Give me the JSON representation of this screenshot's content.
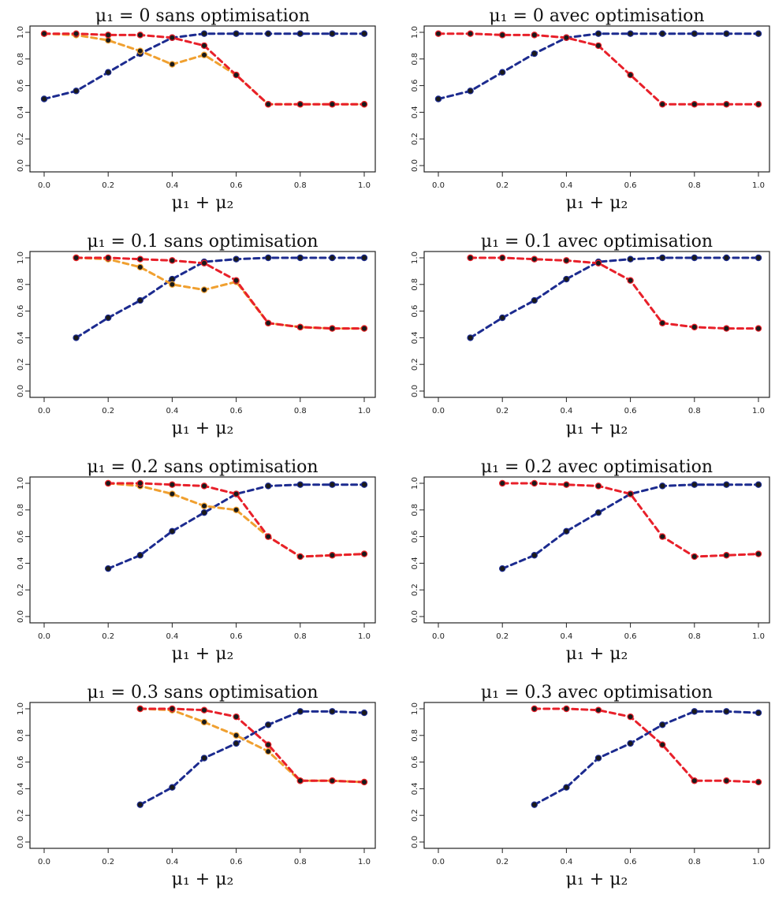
{
  "chart_data": [
    {
      "type": "line",
      "title": "μ₁ = 0 sans optimisation",
      "xlabel": "μ₁ + μ₂",
      "xlim": [
        0,
        1
      ],
      "ylim": [
        0,
        1
      ],
      "xticks": [
        "0.0",
        "0.2",
        "0.4",
        "0.6",
        "0.8",
        "1.0"
      ],
      "yticks": [
        "0.0",
        "0.2",
        "0.4",
        "0.6",
        "0.8",
        "1.0"
      ],
      "series": [
        {
          "color": "#1c2b8f",
          "x": [
            0,
            0.1,
            0.2,
            0.3,
            0.4,
            0.5,
            0.6,
            0.7,
            0.8,
            0.9,
            1.0
          ],
          "y": [
            0.5,
            0.56,
            0.7,
            0.84,
            0.96,
            0.99,
            0.99,
            0.99,
            0.99,
            0.99,
            0.99
          ]
        },
        {
          "color": "#f0a030",
          "x": [
            0,
            0.1,
            0.2,
            0.3,
            0.4,
            0.5,
            0.6,
            0.7,
            0.8,
            0.9,
            1.0
          ],
          "y": [
            0.99,
            0.98,
            0.94,
            0.86,
            0.76,
            0.83,
            0.68,
            0.46,
            0.46,
            0.46,
            0.46
          ]
        },
        {
          "color": "#e8202a",
          "x": [
            0,
            0.1,
            0.2,
            0.3,
            0.4,
            0.5,
            0.6,
            0.7,
            0.8,
            0.9,
            1.0
          ],
          "y": [
            0.99,
            0.99,
            0.98,
            0.98,
            0.96,
            0.9,
            0.68,
            0.46,
            0.46,
            0.46,
            0.46
          ]
        }
      ]
    },
    {
      "type": "line",
      "title": "μ₁ = 0 avec optimisation",
      "xlabel": "μ₁ + μ₂",
      "xlim": [
        0,
        1
      ],
      "ylim": [
        0,
        1
      ],
      "xticks": [
        "0.0",
        "0.2",
        "0.4",
        "0.6",
        "0.8",
        "1.0"
      ],
      "yticks": [
        "0.0",
        "0.2",
        "0.4",
        "0.6",
        "0.8",
        "1.0"
      ],
      "series": [
        {
          "color": "#1c2b8f",
          "x": [
            0,
            0.1,
            0.2,
            0.3,
            0.4,
            0.5,
            0.6,
            0.7,
            0.8,
            0.9,
            1.0
          ],
          "y": [
            0.5,
            0.56,
            0.7,
            0.84,
            0.96,
            0.99,
            0.99,
            0.99,
            0.99,
            0.99,
            0.99
          ]
        },
        {
          "color": "#e8202a",
          "x": [
            0,
            0.1,
            0.2,
            0.3,
            0.4,
            0.5,
            0.6,
            0.7,
            0.8,
            0.9,
            1.0
          ],
          "y": [
            0.99,
            0.99,
            0.98,
            0.98,
            0.96,
            0.9,
            0.68,
            0.46,
            0.46,
            0.46,
            0.46
          ]
        }
      ]
    },
    {
      "type": "line",
      "title": "μ₁ = 0.1 sans optimisation",
      "xlabel": "μ₁ + μ₂",
      "xlim": [
        0,
        1
      ],
      "ylim": [
        0,
        1
      ],
      "xticks": [
        "0.0",
        "0.2",
        "0.4",
        "0.6",
        "0.8",
        "1.0"
      ],
      "yticks": [
        "0.0",
        "0.2",
        "0.4",
        "0.6",
        "0.8",
        "1.0"
      ],
      "series": [
        {
          "color": "#1c2b8f",
          "x": [
            0.1,
            0.2,
            0.3,
            0.4,
            0.5,
            0.6,
            0.7,
            0.8,
            0.9,
            1.0
          ],
          "y": [
            0.4,
            0.55,
            0.68,
            0.84,
            0.97,
            0.99,
            1.0,
            1.0,
            1.0,
            1.0
          ]
        },
        {
          "color": "#f0a030",
          "x": [
            0.1,
            0.2,
            0.3,
            0.4,
            0.5,
            0.6,
            0.7,
            0.8,
            0.9,
            1.0
          ],
          "y": [
            1.0,
            0.99,
            0.93,
            0.8,
            0.76,
            0.82,
            0.51,
            0.48,
            0.47,
            0.47
          ]
        },
        {
          "color": "#e8202a",
          "x": [
            0.1,
            0.2,
            0.3,
            0.4,
            0.5,
            0.6,
            0.7,
            0.8,
            0.9,
            1.0
          ],
          "y": [
            1.0,
            1.0,
            0.99,
            0.98,
            0.96,
            0.83,
            0.51,
            0.48,
            0.47,
            0.47
          ]
        }
      ]
    },
    {
      "type": "line",
      "title": "μ₁ = 0.1 avec optimisation",
      "xlabel": "μ₁ + μ₂",
      "xlim": [
        0,
        1
      ],
      "ylim": [
        0,
        1
      ],
      "xticks": [
        "0.0",
        "0.2",
        "0.4",
        "0.6",
        "0.8",
        "1.0"
      ],
      "yticks": [
        "0.0",
        "0.2",
        "0.4",
        "0.6",
        "0.8",
        "1.0"
      ],
      "series": [
        {
          "color": "#1c2b8f",
          "x": [
            0.1,
            0.2,
            0.3,
            0.4,
            0.5,
            0.6,
            0.7,
            0.8,
            0.9,
            1.0
          ],
          "y": [
            0.4,
            0.55,
            0.68,
            0.84,
            0.97,
            0.99,
            1.0,
            1.0,
            1.0,
            1.0
          ]
        },
        {
          "color": "#e8202a",
          "x": [
            0.1,
            0.2,
            0.3,
            0.4,
            0.5,
            0.6,
            0.7,
            0.8,
            0.9,
            1.0
          ],
          "y": [
            1.0,
            1.0,
            0.99,
            0.98,
            0.96,
            0.83,
            0.51,
            0.48,
            0.47,
            0.47
          ]
        }
      ]
    },
    {
      "type": "line",
      "title": "μ₁ = 0.2 sans optimisation",
      "xlabel": "μ₁ + μ₂",
      "xlim": [
        0,
        1
      ],
      "ylim": [
        0,
        1
      ],
      "xticks": [
        "0.0",
        "0.2",
        "0.4",
        "0.6",
        "0.8",
        "1.0"
      ],
      "yticks": [
        "0.0",
        "0.2",
        "0.4",
        "0.6",
        "0.8",
        "1.0"
      ],
      "series": [
        {
          "color": "#1c2b8f",
          "x": [
            0.2,
            0.3,
            0.4,
            0.5,
            0.6,
            0.7,
            0.8,
            0.9,
            1.0
          ],
          "y": [
            0.36,
            0.46,
            0.64,
            0.78,
            0.92,
            0.98,
            0.99,
            0.99,
            0.99
          ]
        },
        {
          "color": "#f0a030",
          "x": [
            0.2,
            0.3,
            0.4,
            0.5,
            0.6,
            0.7,
            0.8,
            0.9,
            1.0
          ],
          "y": [
            1.0,
            0.98,
            0.92,
            0.83,
            0.8,
            0.6,
            0.45,
            0.46,
            0.47
          ]
        },
        {
          "color": "#e8202a",
          "x": [
            0.2,
            0.3,
            0.4,
            0.5,
            0.6,
            0.7,
            0.8,
            0.9,
            1.0
          ],
          "y": [
            1.0,
            1.0,
            0.99,
            0.98,
            0.92,
            0.6,
            0.45,
            0.46,
            0.47
          ]
        }
      ]
    },
    {
      "type": "line",
      "title": "μ₁ = 0.2 avec optimisation",
      "xlabel": "μ₁ + μ₂",
      "xlim": [
        0,
        1
      ],
      "ylim": [
        0,
        1
      ],
      "xticks": [
        "0.0",
        "0.2",
        "0.4",
        "0.6",
        "0.8",
        "1.0"
      ],
      "yticks": [
        "0.0",
        "0.2",
        "0.4",
        "0.6",
        "0.8",
        "1.0"
      ],
      "series": [
        {
          "color": "#1c2b8f",
          "x": [
            0.2,
            0.3,
            0.4,
            0.5,
            0.6,
            0.7,
            0.8,
            0.9,
            1.0
          ],
          "y": [
            0.36,
            0.46,
            0.64,
            0.78,
            0.92,
            0.98,
            0.99,
            0.99,
            0.99
          ]
        },
        {
          "color": "#e8202a",
          "x": [
            0.2,
            0.3,
            0.4,
            0.5,
            0.6,
            0.7,
            0.8,
            0.9,
            1.0
          ],
          "y": [
            1.0,
            1.0,
            0.99,
            0.98,
            0.92,
            0.6,
            0.45,
            0.46,
            0.47
          ]
        }
      ]
    },
    {
      "type": "line",
      "title": "μ₁ = 0.3 sans optimisation",
      "xlabel": "μ₁ + μ₂",
      "xlim": [
        0,
        1
      ],
      "ylim": [
        0,
        1
      ],
      "xticks": [
        "0.0",
        "0.2",
        "0.4",
        "0.6",
        "0.8",
        "1.0"
      ],
      "yticks": [
        "0.0",
        "0.2",
        "0.4",
        "0.6",
        "0.8",
        "1.0"
      ],
      "series": [
        {
          "color": "#1c2b8f",
          "x": [
            0.3,
            0.4,
            0.5,
            0.6,
            0.7,
            0.8,
            0.9,
            1.0
          ],
          "y": [
            0.28,
            0.41,
            0.63,
            0.74,
            0.88,
            0.98,
            0.98,
            0.97
          ]
        },
        {
          "color": "#f0a030",
          "x": [
            0.3,
            0.4,
            0.5,
            0.6,
            0.7,
            0.8,
            0.9,
            1.0
          ],
          "y": [
            1.0,
            0.99,
            0.9,
            0.8,
            0.68,
            0.46,
            0.46,
            0.45
          ]
        },
        {
          "color": "#e8202a",
          "x": [
            0.3,
            0.4,
            0.5,
            0.6,
            0.7,
            0.8,
            0.9,
            1.0
          ],
          "y": [
            1.0,
            1.0,
            0.99,
            0.94,
            0.73,
            0.46,
            0.46,
            0.45
          ]
        }
      ]
    },
    {
      "type": "line",
      "title": "μ₁ = 0.3 avec optimisation",
      "xlabel": "μ₁ + μ₂",
      "xlim": [
        0,
        1
      ],
      "ylim": [
        0,
        1
      ],
      "xticks": [
        "0.0",
        "0.2",
        "0.4",
        "0.6",
        "0.8",
        "1.0"
      ],
      "yticks": [
        "0.0",
        "0.2",
        "0.4",
        "0.6",
        "0.8",
        "1.0"
      ],
      "series": [
        {
          "color": "#1c2b8f",
          "x": [
            0.3,
            0.4,
            0.5,
            0.6,
            0.7,
            0.8,
            0.9,
            1.0
          ],
          "y": [
            0.28,
            0.41,
            0.63,
            0.74,
            0.88,
            0.98,
            0.98,
            0.97
          ]
        },
        {
          "color": "#e8202a",
          "x": [
            0.3,
            0.4,
            0.5,
            0.6,
            0.7,
            0.8,
            0.9,
            1.0
          ],
          "y": [
            1.0,
            1.0,
            0.99,
            0.94,
            0.73,
            0.46,
            0.46,
            0.45
          ]
        }
      ]
    }
  ]
}
